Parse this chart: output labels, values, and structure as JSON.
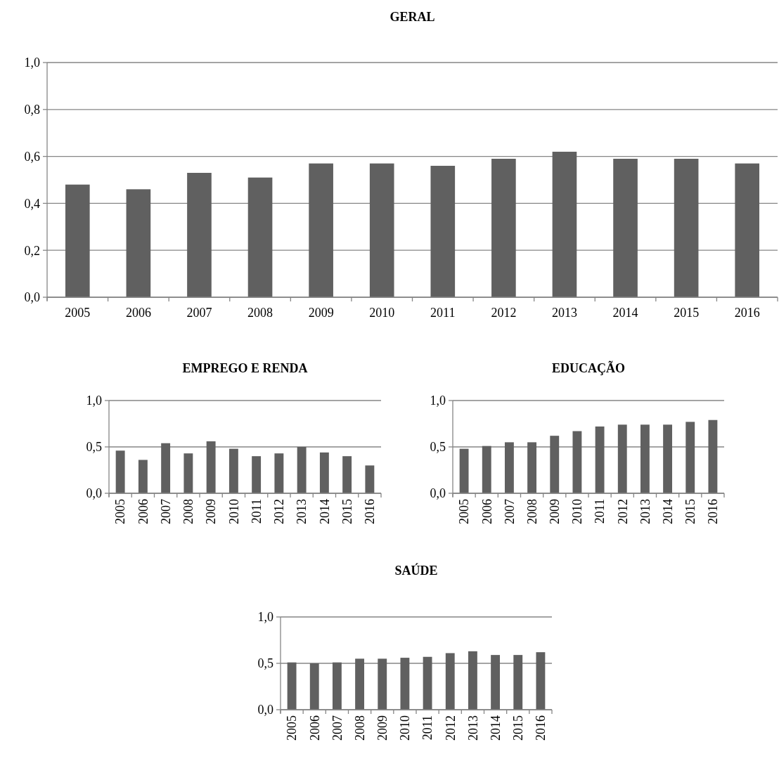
{
  "chart_data": [
    {
      "type": "bar",
      "title": "GERAL",
      "categories": [
        "2005",
        "2006",
        "2007",
        "2008",
        "2009",
        "2010",
        "2011",
        "2012",
        "2013",
        "2014",
        "2015",
        "2016"
      ],
      "values": [
        0.48,
        0.46,
        0.53,
        0.51,
        0.57,
        0.57,
        0.56,
        0.59,
        0.62,
        0.59,
        0.59,
        0.57
      ],
      "color": "#606060",
      "ylim": [
        0,
        1
      ],
      "yticks": [
        {
          "value": 0,
          "label": "0,0"
        },
        {
          "value": 0.2,
          "label": "0,2"
        },
        {
          "value": 0.4,
          "label": "0,4"
        },
        {
          "value": 0.6,
          "label": "0,6"
        },
        {
          "value": 0.8,
          "label": "0,8"
        },
        {
          "value": 1,
          "label": "1,0"
        }
      ],
      "grid": "y"
    },
    {
      "type": "bar",
      "title": "EMPREGO E RENDA",
      "categories": [
        "2005",
        "2006",
        "2007",
        "2008",
        "2009",
        "2010",
        "2011",
        "2012",
        "2013",
        "2014",
        "2015",
        "2016"
      ],
      "values": [
        0.46,
        0.36,
        0.54,
        0.43,
        0.56,
        0.48,
        0.4,
        0.43,
        0.5,
        0.44,
        0.4,
        0.3
      ],
      "color": "#606060",
      "ylim": [
        0,
        1
      ],
      "yticks": [
        {
          "value": 0,
          "label": "0,0"
        },
        {
          "value": 0.5,
          "label": "0,5"
        },
        {
          "value": 1,
          "label": "1,0"
        }
      ],
      "grid": "y"
    },
    {
      "type": "bar",
      "title": "EDUCAÇÃO",
      "categories": [
        "2005",
        "2006",
        "2007",
        "2008",
        "2009",
        "2010",
        "2011",
        "2012",
        "2013",
        "2014",
        "2015",
        "2016"
      ],
      "values": [
        0.48,
        0.51,
        0.55,
        0.55,
        0.62,
        0.67,
        0.72,
        0.74,
        0.74,
        0.74,
        0.77,
        0.79
      ],
      "color": "#606060",
      "ylim": [
        0,
        1
      ],
      "yticks": [
        {
          "value": 0,
          "label": "0,0"
        },
        {
          "value": 0.5,
          "label": "0,5"
        },
        {
          "value": 1,
          "label": "1,0"
        }
      ],
      "grid": "y"
    },
    {
      "type": "bar",
      "title": "SAÚDE",
      "categories": [
        "2005",
        "2006",
        "2007",
        "2008",
        "2009",
        "2010",
        "2011",
        "2012",
        "2013",
        "2014",
        "2015",
        "2016"
      ],
      "values": [
        0.51,
        0.5,
        0.51,
        0.55,
        0.55,
        0.56,
        0.57,
        0.61,
        0.63,
        0.59,
        0.59,
        0.62
      ],
      "color": "#606060",
      "ylim": [
        0,
        1
      ],
      "yticks": [
        {
          "value": 0,
          "label": "0,0"
        },
        {
          "value": 0.5,
          "label": "0,5"
        },
        {
          "value": 1,
          "label": "1,0"
        }
      ],
      "grid": "y"
    }
  ]
}
